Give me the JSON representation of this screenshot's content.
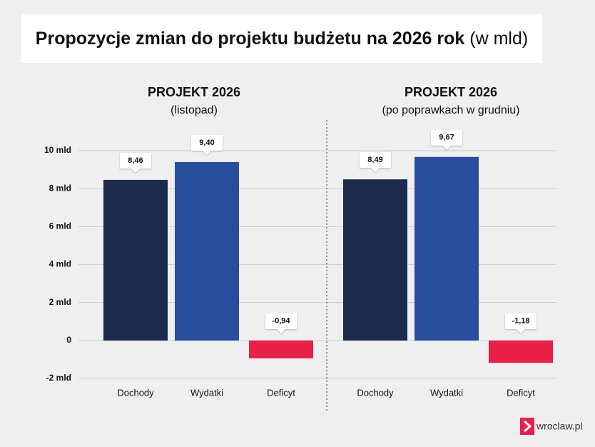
{
  "title": "Propozycje zmian do projektu budżetu na 2026 rok",
  "title_note": "(w mld)",
  "brand": "wroclaw.pl",
  "chart_data": [
    {
      "type": "bar",
      "title": "PROJEKT 2026",
      "subtitle": "(listopad)",
      "categories": [
        "Dochody",
        "Wydatki",
        "Deficyt"
      ],
      "values": [
        8.46,
        9.4,
        -0.94
      ],
      "value_labels": [
        "8,46",
        "9,40",
        "-0,94"
      ],
      "colors": [
        "#1c2a4d",
        "#274e9c",
        "#e8204a"
      ],
      "ylim": [
        -2,
        10
      ],
      "yticks": [
        {
          "value": -2,
          "label": "-2 mld"
        },
        0,
        {
          "value": 2,
          "label": "2 mld"
        },
        {
          "value": 4,
          "label": "4 mld"
        },
        {
          "value": 6,
          "label": "6 mld"
        },
        {
          "value": 8,
          "label": "8 mld"
        },
        {
          "value": 10,
          "label": "10 mld"
        }
      ],
      "grid": true
    },
    {
      "type": "bar",
      "title": "PROJEKT 2026",
      "subtitle": "(po poprawkach w grudniu)",
      "categories": [
        "Dochody",
        "Wydatki",
        "Deficyt"
      ],
      "values": [
        8.49,
        9.67,
        -1.18
      ],
      "value_labels": [
        "8,49",
        "9,67",
        "-1,18"
      ],
      "colors": [
        "#1c2a4d",
        "#274e9c",
        "#e8204a"
      ],
      "ylim": [
        -2,
        10
      ],
      "yticks": [
        {
          "value": -2,
          "label": "-2 mld"
        },
        0,
        {
          "value": 2,
          "label": "2 mld"
        },
        {
          "value": 4,
          "label": "4 mld"
        },
        {
          "value": 6,
          "label": "6 mld"
        },
        {
          "value": 8,
          "label": "8 mld"
        },
        {
          "value": 10,
          "label": "10 mld"
        }
      ],
      "grid": true
    }
  ]
}
